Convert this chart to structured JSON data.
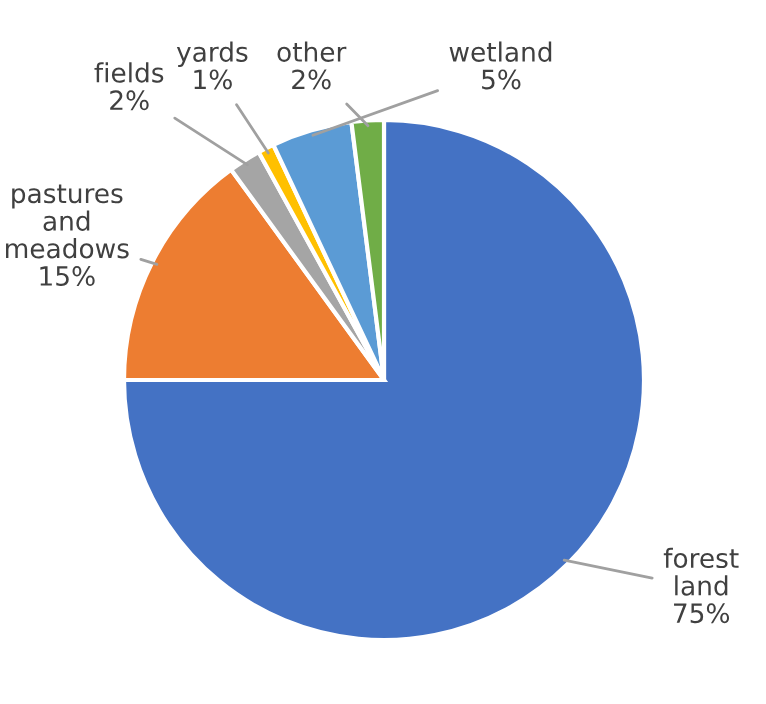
{
  "chart_data": {
    "type": "pie",
    "categories": [
      "forest land",
      "pastures and meadows",
      "fields",
      "yards",
      "wetland",
      "other"
    ],
    "values": [
      75,
      15,
      2,
      1,
      5,
      2
    ],
    "value_labels": [
      "75%",
      "15%",
      "2%",
      "1%",
      "5%",
      "2%"
    ],
    "colors": [
      "#4472c4",
      "#ed7d31",
      "#a5a5a5",
      "#ffc000",
      "#5b9bd5",
      "#70ad47"
    ],
    "legend": false
  }
}
